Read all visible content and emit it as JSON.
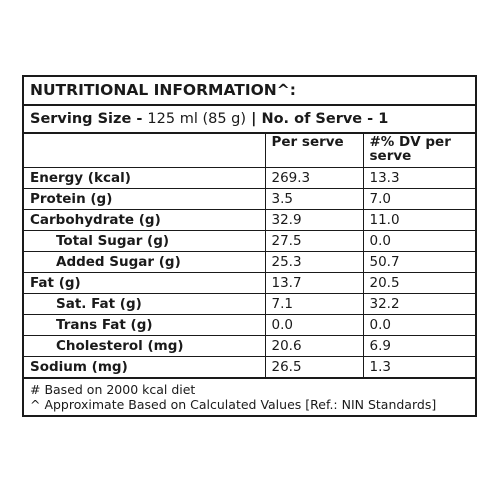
{
  "title": "NUTRITIONAL INFORMATION^:",
  "serving": {
    "label": "Serving Size - ",
    "value": "125 ml (85 g)",
    "separator": " | ",
    "serves_label": "No. of Serve - 1"
  },
  "columns": {
    "per_serve": "Per serve",
    "dv_per_serve": "#% DV per serve"
  },
  "rows": [
    {
      "nutrient": "Energy (kcal)",
      "per_serve": "269.3",
      "dv": "13.3"
    },
    {
      "nutrient": "Protein (g)",
      "per_serve": "3.5",
      "dv": "7.0"
    },
    {
      "nutrient": "Carbohydrate (g)",
      "per_serve": "32.9",
      "dv": "11.0"
    },
    {
      "nutrient": "Total Sugar (g)",
      "per_serve": "27.5",
      "dv": "0.0"
    },
    {
      "nutrient": "Added Sugar (g)",
      "per_serve": "25.3",
      "dv": "50.7"
    },
    {
      "nutrient": "Fat (g)",
      "per_serve": "13.7",
      "dv": "20.5"
    },
    {
      "nutrient": "Sat. Fat (g)",
      "per_serve": "7.1",
      "dv": "32.2"
    },
    {
      "nutrient": "Trans Fat (g)",
      "per_serve": "0.0",
      "dv": "0.0"
    },
    {
      "nutrient": "Cholesterol (mg)",
      "per_serve": "20.6",
      "dv": "6.9"
    },
    {
      "nutrient": "Sodium (mg)",
      "per_serve": "26.5",
      "dv": "1.3"
    }
  ],
  "footnotes": [
    "# Based on 2000 kcal diet",
    "^ Approximate Based on Calculated Values [Ref.: NIN Standards]"
  ]
}
